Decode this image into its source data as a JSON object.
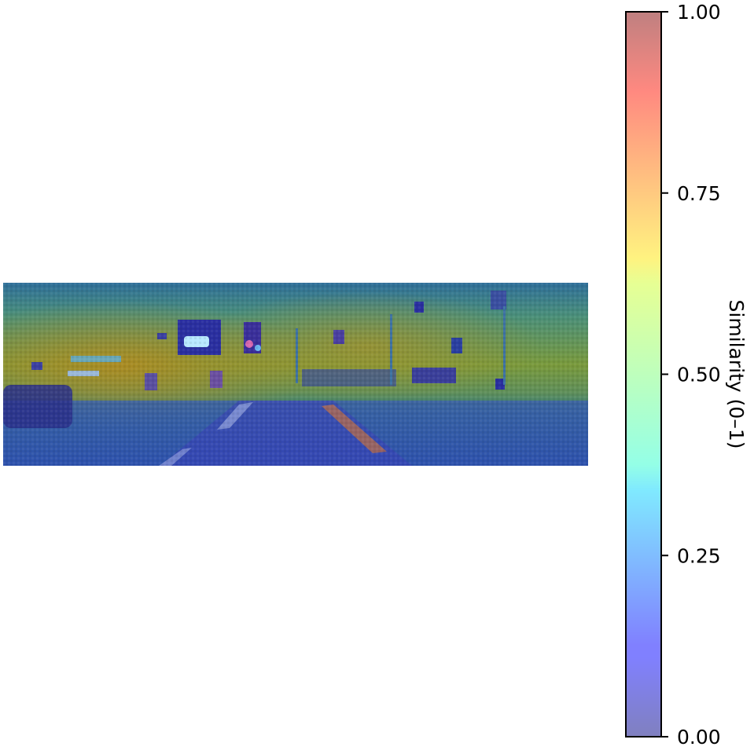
{
  "chart_data": {
    "type": "heatmap",
    "title": "",
    "description_hidden": false,
    "colorbar": {
      "label": "Similarity (0–1)",
      "range": [
        0,
        1
      ],
      "ticks": [
        0.0,
        0.25,
        0.5,
        0.75,
        1.0
      ],
      "tick_labels": [
        "0.00",
        "0.25",
        "0.50",
        "0.75",
        "1.00"
      ],
      "colormap": "jet",
      "alpha": 0.5,
      "orientation": "vertical",
      "placement": "right"
    },
    "colors": {
      "low": "#0000ff",
      "mid": "#7fff7f",
      "high": "#ff0000",
      "background": "#ffffff"
    },
    "axes": {
      "visible": false
    }
  }
}
